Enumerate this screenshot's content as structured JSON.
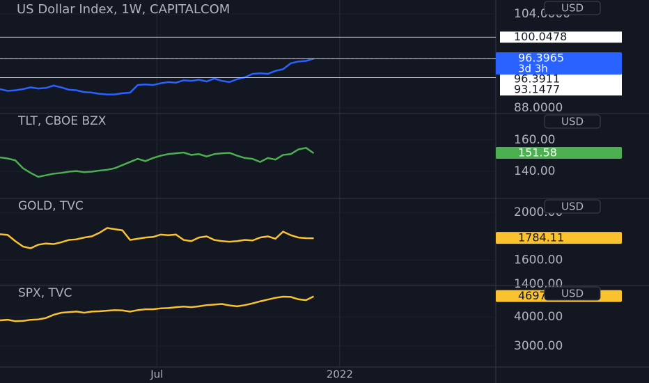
{
  "xlim": [
    0,
    64.8
  ],
  "xticks": [
    {
      "value": 20.5,
      "label": "Jul"
    },
    {
      "value": 44.4,
      "label": "2022"
    }
  ],
  "chart_data": [
    {
      "type": "line",
      "title": "US Dollar Index, 1W, CAPITALCOM",
      "currency": "USD",
      "color": "#2962ff",
      "values": [
        91.2,
        90.9,
        91.0,
        91.2,
        91.5,
        91.3,
        91.4,
        91.8,
        91.5,
        91.1,
        91.0,
        90.7,
        90.6,
        90.4,
        90.3,
        90.3,
        90.5,
        90.6,
        91.9,
        92.0,
        91.9,
        92.2,
        92.4,
        92.3,
        92.7,
        92.6,
        92.8,
        92.5,
        93.0,
        92.6,
        92.4,
        92.9,
        93.2,
        93.8,
        93.9,
        93.8,
        94.3,
        94.6,
        95.6,
        95.9,
        96.0,
        96.3965
      ],
      "countdown": "3d 3h",
      "levels": [
        100.0478,
        96.3911,
        93.1477
      ],
      "ylim": [
        87.05,
        106.37
      ],
      "yticks": [
        {
          "value": 104,
          "label": "104.0000"
        },
        {
          "value": 88,
          "label": "88.0000"
        }
      ]
    },
    {
      "type": "line",
      "title": "TLT, CBOE BZX",
      "currency": "USD",
      "color": "#4caf50",
      "values": [
        148.9,
        148.2,
        147.0,
        142,
        139,
        136.5,
        137.5,
        138.5,
        139,
        139.8,
        140.2,
        139.5,
        139.8,
        140.5,
        141,
        142,
        144,
        146,
        148,
        146.5,
        148.5,
        150,
        151,
        151.5,
        152,
        150.5,
        151,
        149.5,
        151,
        151.5,
        151.8,
        150,
        148.5,
        148,
        146,
        148.5,
        147.5,
        150.5,
        151,
        154,
        155,
        151.58
      ],
      "ylim": [
        122.7,
        176.9
      ],
      "yticks": [
        {
          "value": 160,
          "label": "160.00"
        },
        {
          "value": 140,
          "label": "140.00"
        }
      ]
    },
    {
      "type": "line",
      "title": "GOLD, TVC",
      "currency": "USD",
      "color": "#f9c22e",
      "values": [
        1818,
        1812,
        1760,
        1715,
        1700,
        1730,
        1740,
        1735,
        1750,
        1770,
        1775,
        1790,
        1800,
        1830,
        1870,
        1860,
        1850,
        1770,
        1780,
        1790,
        1795,
        1815,
        1810,
        1815,
        1770,
        1760,
        1790,
        1800,
        1770,
        1760,
        1755,
        1760,
        1770,
        1765,
        1790,
        1800,
        1780,
        1840,
        1810,
        1790,
        1785,
        1784.11
      ],
      "ylim": [
        1388,
        2117.6
      ],
      "yticks": [
        {
          "value": 2000,
          "label": "2000.00"
        },
        {
          "value": 1600,
          "label": "1600.00"
        },
        {
          "value": 1400,
          "label": "1400.00"
        }
      ]
    },
    {
      "type": "line",
      "title": "SPX, TVC",
      "currency": "USD",
      "color": "#f9c22e",
      "values": [
        3880,
        3900,
        3850,
        3860,
        3900,
        3910,
        3960,
        4070,
        4140,
        4160,
        4180,
        4140,
        4180,
        4190,
        4210,
        4230,
        4220,
        4180,
        4230,
        4260,
        4260,
        4290,
        4300,
        4330,
        4350,
        4330,
        4360,
        4400,
        4420,
        4440,
        4390,
        4360,
        4400,
        4460,
        4530,
        4590,
        4650,
        4690,
        4680,
        4600,
        4570,
        4697.96
      ],
      "ylim": [
        2286,
        5071
      ],
      "yticks": [
        {
          "value": 4000,
          "label": "4000.00"
        },
        {
          "value": 3000,
          "label": "3000.00"
        }
      ]
    }
  ]
}
